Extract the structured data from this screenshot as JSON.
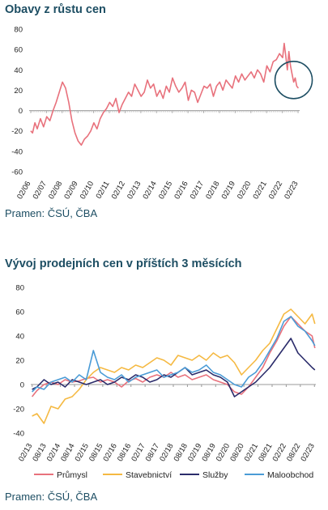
{
  "chart_data": [
    {
      "type": "line",
      "title": "Obavy z růstu cen",
      "source": "Pramen: ČSÚ, ČBA",
      "ylim": [
        -60,
        80
      ],
      "yticks": [
        "80",
        "60",
        "40",
        "20",
        "0",
        "-20",
        "-40",
        "-60"
      ],
      "xticks": [
        "02/06",
        "02/07",
        "02/08",
        "02/09",
        "02/10",
        "02/11",
        "02/12",
        "02/13",
        "02/14",
        "02/15",
        "02/16",
        "02/17",
        "02/18",
        "02/19",
        "02/20",
        "02/21",
        "02/22",
        "02/23"
      ],
      "grid": false,
      "annotation": "circle",
      "series": [
        {
          "color": "#e8717c",
          "x": [
            2006.08,
            2006.2,
            2006.35,
            2006.5,
            2006.7,
            2006.9,
            2007.1,
            2007.3,
            2007.5,
            2007.7,
            2007.9,
            2008.1,
            2008.3,
            2008.5,
            2008.7,
            2008.9,
            2009.1,
            2009.3,
            2009.5,
            2009.7,
            2009.9,
            2010.1,
            2010.3,
            2010.5,
            2010.7,
            2010.9,
            2011.1,
            2011.3,
            2011.5,
            2011.7,
            2011.9,
            2012.1,
            2012.3,
            2012.5,
            2012.7,
            2012.9,
            2013.1,
            2013.3,
            2013.5,
            2013.7,
            2013.9,
            2014.1,
            2014.3,
            2014.5,
            2014.7,
            2014.9,
            2015.1,
            2015.3,
            2015.5,
            2015.7,
            2015.9,
            2016.1,
            2016.3,
            2016.5,
            2016.7,
            2016.9,
            2017.1,
            2017.3,
            2017.5,
            2017.7,
            2017.9,
            2018.1,
            2018.3,
            2018.5,
            2018.7,
            2018.9,
            2019.1,
            2019.3,
            2019.5,
            2019.7,
            2019.9,
            2020.1,
            2020.3,
            2020.5,
            2020.7,
            2020.9,
            2021.1,
            2021.3,
            2021.5,
            2021.7,
            2021.9,
            2022.1,
            2022.2,
            2022.3,
            2022.4,
            2022.5,
            2022.6,
            2022.7,
            2022.8,
            2022.9,
            2023.0,
            2023.1
          ],
          "y": [
            -20,
            -22,
            -12,
            -18,
            -8,
            -16,
            -6,
            -10,
            0,
            8,
            18,
            28,
            22,
            8,
            -10,
            -22,
            -30,
            -34,
            -28,
            -25,
            -20,
            -12,
            -18,
            -8,
            -2,
            2,
            8,
            4,
            12,
            -2,
            6,
            12,
            18,
            14,
            26,
            20,
            14,
            18,
            30,
            22,
            26,
            14,
            20,
            12,
            24,
            18,
            32,
            24,
            18,
            22,
            28,
            10,
            20,
            18,
            8,
            16,
            24,
            22,
            26,
            14,
            24,
            28,
            20,
            30,
            26,
            22,
            34,
            28,
            36,
            30,
            34,
            38,
            32,
            40,
            36,
            28,
            44,
            38,
            48,
            50,
            56,
            52,
            66,
            54,
            40,
            58,
            44,
            36,
            28,
            32,
            24,
            22
          ]
        }
      ]
    },
    {
      "type": "line",
      "title": "Vývoj prodejních cen v příštích 3 měsících",
      "source": "Pramen: ČSÚ, ČBA",
      "ylim": [
        -40,
        80
      ],
      "yticks": [
        "80",
        "60",
        "40",
        "20",
        "0",
        "-20",
        "-40"
      ],
      "xticks": [
        "02/13",
        "08/13",
        "02/14",
        "08/14",
        "02/15",
        "08/15",
        "02/16",
        "08/16",
        "02/17",
        "08/17",
        "02/18",
        "08/18",
        "02/19",
        "08/19",
        "02/20",
        "08/20",
        "02/21",
        "08/21",
        "02/22",
        "08/22",
        "02/23"
      ],
      "grid": false,
      "legend_position": "bottom",
      "series": [
        {
          "name": "Průmysl",
          "color": "#e8717c",
          "x": [
            2013.08,
            2013.25,
            2013.5,
            2013.75,
            2014.0,
            2014.25,
            2014.5,
            2014.75,
            2015.0,
            2015.25,
            2015.5,
            2015.75,
            2016.0,
            2016.25,
            2016.5,
            2016.75,
            2017.0,
            2017.25,
            2017.5,
            2017.75,
            2018.0,
            2018.25,
            2018.5,
            2018.75,
            2019.0,
            2019.25,
            2019.5,
            2019.75,
            2020.0,
            2020.25,
            2020.5,
            2020.75,
            2021.0,
            2021.25,
            2021.5,
            2021.75,
            2022.0,
            2022.25,
            2022.5,
            2022.75,
            2023.0,
            2023.1
          ],
          "y": [
            -10,
            -5,
            0,
            2,
            0,
            4,
            2,
            3,
            5,
            6,
            2,
            4,
            2,
            -2,
            3,
            5,
            2,
            6,
            8,
            6,
            10,
            6,
            8,
            4,
            6,
            8,
            4,
            2,
            0,
            -6,
            -8,
            -2,
            6,
            14,
            26,
            36,
            48,
            56,
            50,
            44,
            40,
            30
          ]
        },
        {
          "name": "Stavebnictví",
          "color": "#f5b942",
          "x": [
            2013.08,
            2013.25,
            2013.5,
            2013.75,
            2014.0,
            2014.25,
            2014.5,
            2014.75,
            2015.0,
            2015.25,
            2015.5,
            2015.75,
            2016.0,
            2016.25,
            2016.5,
            2016.75,
            2017.0,
            2017.25,
            2017.5,
            2017.75,
            2018.0,
            2018.25,
            2018.5,
            2018.75,
            2019.0,
            2019.25,
            2019.5,
            2019.75,
            2020.0,
            2020.25,
            2020.5,
            2020.75,
            2021.0,
            2021.25,
            2021.5,
            2021.75,
            2022.0,
            2022.25,
            2022.5,
            2022.75,
            2023.0,
            2023.1
          ],
          "y": [
            -26,
            -24,
            -32,
            -18,
            -20,
            -12,
            -10,
            -4,
            4,
            10,
            14,
            12,
            10,
            14,
            12,
            16,
            14,
            18,
            22,
            20,
            16,
            24,
            22,
            20,
            24,
            20,
            26,
            22,
            24,
            18,
            8,
            14,
            20,
            28,
            34,
            46,
            58,
            62,
            56,
            50,
            58,
            50
          ]
        },
        {
          "name": "Služby",
          "color": "#2b2c6b",
          "x": [
            2013.08,
            2013.25,
            2013.5,
            2013.75,
            2014.0,
            2014.25,
            2014.5,
            2014.75,
            2015.0,
            2015.25,
            2015.5,
            2015.75,
            2016.0,
            2016.25,
            2016.5,
            2016.75,
            2017.0,
            2017.25,
            2017.5,
            2017.75,
            2018.0,
            2018.25,
            2018.5,
            2018.75,
            2019.0,
            2019.25,
            2019.5,
            2019.75,
            2020.0,
            2020.25,
            2020.5,
            2020.75,
            2021.0,
            2021.25,
            2021.5,
            2021.75,
            2022.0,
            2022.25,
            2022.5,
            2022.75,
            2023.0,
            2023.1
          ],
          "y": [
            -4,
            -2,
            4,
            0,
            2,
            -2,
            4,
            2,
            0,
            2,
            4,
            0,
            2,
            6,
            4,
            8,
            6,
            2,
            4,
            8,
            6,
            10,
            14,
            8,
            10,
            12,
            8,
            6,
            2,
            -10,
            -6,
            -2,
            2,
            8,
            14,
            22,
            30,
            38,
            26,
            20,
            14,
            12
          ]
        },
        {
          "name": "Maloobchod",
          "color": "#4a9bd6",
          "x": [
            2013.08,
            2013.25,
            2013.5,
            2013.75,
            2014.0,
            2014.25,
            2014.5,
            2014.75,
            2015.0,
            2015.25,
            2015.5,
            2015.75,
            2016.0,
            2016.25,
            2016.5,
            2016.75,
            2017.0,
            2017.25,
            2017.5,
            2017.75,
            2018.0,
            2018.25,
            2018.5,
            2018.75,
            2019.0,
            2019.25,
            2019.5,
            2019.75,
            2020.0,
            2020.25,
            2020.5,
            2020.75,
            2021.0,
            2021.25,
            2021.5,
            2021.75,
            2022.0,
            2022.25,
            2022.5,
            2022.75,
            2023.0,
            2023.1
          ],
          "y": [
            -6,
            -2,
            -4,
            2,
            4,
            6,
            2,
            8,
            4,
            28,
            10,
            6,
            4,
            8,
            2,
            6,
            8,
            10,
            12,
            6,
            8,
            10,
            14,
            10,
            12,
            16,
            10,
            8,
            4,
            0,
            -2,
            6,
            10,
            18,
            28,
            38,
            52,
            56,
            48,
            44,
            36,
            32
          ]
        }
      ]
    }
  ]
}
